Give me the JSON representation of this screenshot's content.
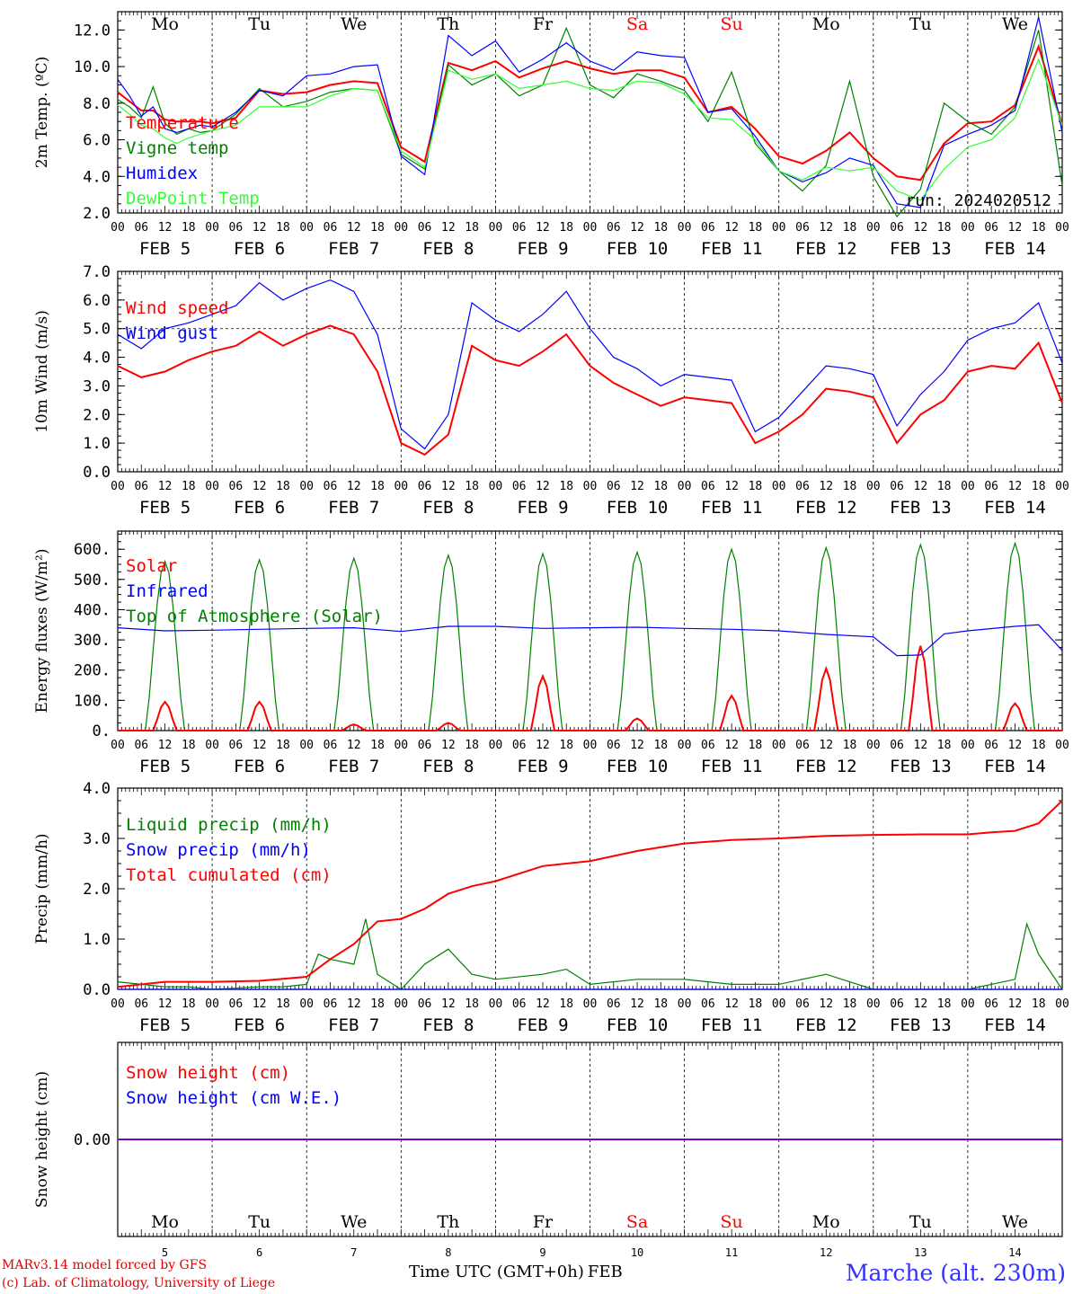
{
  "chart_data": {
    "type": "line",
    "run_label": "run: 2024020512",
    "day_names": [
      "Mo",
      "Tu",
      "We",
      "Th",
      "Fr",
      "Sa",
      "Su",
      "Mo",
      "Tu",
      "We"
    ],
    "weekend_flags": [
      false,
      false,
      false,
      false,
      false,
      true,
      true,
      false,
      false,
      false
    ],
    "date_labels": [
      "FEB  5",
      "FEB  6",
      "FEB  7",
      "FEB  8",
      "FEB  9",
      "FEB 10",
      "FEB 11",
      "FEB 12",
      "FEB 13",
      "FEB 14"
    ],
    "bottom_dates": [
      "5",
      "6",
      "7",
      "8",
      "9",
      "10",
      "11",
      "12",
      "13",
      "14"
    ],
    "hour_labels": [
      "00",
      "06",
      "12",
      "18"
    ],
    "hour_end_label": "00",
    "colors": {
      "red": "#ff0000",
      "green": "#008000",
      "blue": "#0000ff",
      "lime": "#33ff33",
      "purple": "#8000c0"
    },
    "panels": [
      {
        "id": "temp",
        "ylabel": "2m Temp. (ºC)",
        "ylim": [
          2,
          13
        ],
        "ticks": [
          2.0,
          4.0,
          6.0,
          8.0,
          10.0,
          12.0
        ],
        "tick_decimals": 1,
        "show_day_names": true,
        "series": [
          {
            "name": "Temperature",
            "color": "red",
            "x": [
              0,
              3,
              6,
              9,
              12,
              15,
              18,
              21,
              24,
              30,
              36,
              42,
              48,
              54,
              60,
              66,
              72,
              78,
              84,
              90,
              96,
              102,
              108,
              114,
              120,
              126,
              132,
              138,
              144,
              150,
              156,
              162,
              168,
              174,
              180,
              186,
              192,
              198,
              204,
              210,
              216,
              222,
              228,
              234,
              240
            ],
            "y": [
              8.6,
              8.1,
              7.6,
              7.6,
              7.1,
              7.0,
              7.0,
              7.0,
              6.9,
              7.2,
              8.7,
              8.5,
              8.6,
              9.0,
              9.2,
              9.1,
              5.6,
              4.8,
              10.2,
              9.8,
              10.3,
              9.4,
              9.9,
              10.3,
              9.9,
              9.6,
              9.8,
              9.8,
              9.4,
              7.5,
              7.8,
              6.6,
              5.1,
              4.7,
              5.4,
              6.4,
              5.0,
              4.0,
              3.8,
              5.8,
              6.9,
              7.0,
              7.9,
              11.1,
              6.8
            ]
          },
          {
            "name": "Vigne temp",
            "color": "green",
            "x": [
              0,
              3,
              6,
              9,
              12,
              15,
              18,
              21,
              24,
              30,
              36,
              42,
              48,
              54,
              60,
              66,
              72,
              78,
              84,
              90,
              96,
              102,
              108,
              114,
              120,
              126,
              132,
              138,
              144,
              150,
              156,
              162,
              168,
              174,
              180,
              186,
              192,
              198,
              204,
              210,
              216,
              222,
              228,
              234,
              240
            ],
            "y": [
              8.2,
              7.8,
              7.2,
              8.9,
              6.9,
              6.3,
              6.6,
              6.4,
              6.5,
              7.4,
              8.8,
              7.8,
              8.1,
              8.6,
              8.8,
              8.7,
              5.2,
              4.4,
              10.1,
              9.0,
              9.6,
              8.4,
              9.0,
              12.1,
              9.0,
              8.3,
              9.6,
              9.2,
              8.7,
              7.0,
              9.7,
              5.8,
              4.3,
              3.2,
              4.6,
              9.2,
              4.0,
              1.8,
              3.3,
              8.0,
              7.0,
              6.3,
              7.8,
              12.0,
              3.5
            ]
          },
          {
            "name": "Humidex",
            "color": "blue",
            "x": [
              0,
              3,
              6,
              9,
              12,
              15,
              18,
              21,
              24,
              30,
              36,
              42,
              48,
              54,
              60,
              66,
              72,
              78,
              84,
              90,
              96,
              102,
              108,
              114,
              120,
              126,
              132,
              138,
              144,
              150,
              156,
              162,
              168,
              174,
              180,
              186,
              192,
              198,
              204,
              210,
              216,
              222,
              228,
              234,
              240
            ],
            "y": [
              9.3,
              8.4,
              7.3,
              7.8,
              6.6,
              6.4,
              6.6,
              6.8,
              6.7,
              7.5,
              8.7,
              8.4,
              9.5,
              9.6,
              10.0,
              10.1,
              5.1,
              4.1,
              11.7,
              10.6,
              11.4,
              9.7,
              10.4,
              11.3,
              10.3,
              9.8,
              10.8,
              10.6,
              10.5,
              7.5,
              7.7,
              6.2,
              4.3,
              3.7,
              4.2,
              5.0,
              4.6,
              2.5,
              2.3,
              5.7,
              6.3,
              6.8,
              7.6,
              12.7,
              6.4
            ]
          },
          {
            "name": "DewPoint Temp",
            "color": "lime",
            "x": [
              0,
              3,
              6,
              9,
              12,
              15,
              18,
              21,
              24,
              30,
              36,
              42,
              48,
              54,
              60,
              66,
              72,
              78,
              84,
              90,
              96,
              102,
              108,
              114,
              120,
              126,
              132,
              138,
              144,
              150,
              156,
              162,
              168,
              174,
              180,
              186,
              192,
              198,
              204,
              210,
              216,
              222,
              228,
              234,
              240
            ],
            "y": [
              7.9,
              7.4,
              6.8,
              6.6,
              6.1,
              5.8,
              6.1,
              6.3,
              6.5,
              6.8,
              7.8,
              7.8,
              7.8,
              8.4,
              8.8,
              8.7,
              5.4,
              4.5,
              9.8,
              9.3,
              9.6,
              8.8,
              9.0,
              9.2,
              8.8,
              8.7,
              9.2,
              9.1,
              8.5,
              7.2,
              7.1,
              6.0,
              4.3,
              3.8,
              4.5,
              4.3,
              4.5,
              3.2,
              2.7,
              4.4,
              5.6,
              6.0,
              7.2,
              10.4,
              6.8
            ]
          }
        ]
      },
      {
        "id": "wind",
        "ylabel": "10m Wind (m/s)",
        "ylim": [
          0,
          7
        ],
        "ticks": [
          0.0,
          1.0,
          2.0,
          3.0,
          4.0,
          5.0,
          6.0,
          7.0
        ],
        "tick_decimals": 1,
        "dashed_ref": 5.0,
        "show_day_names": false,
        "series": [
          {
            "name": "Wind speed",
            "color": "red",
            "x": [
              0,
              6,
              12,
              18,
              24,
              30,
              36,
              42,
              48,
              54,
              60,
              66,
              72,
              78,
              84,
              90,
              96,
              102,
              108,
              114,
              120,
              126,
              132,
              138,
              144,
              150,
              156,
              162,
              168,
              174,
              180,
              186,
              192,
              198,
              204,
              210,
              216,
              222,
              228,
              234,
              240
            ],
            "y": [
              3.7,
              3.3,
              3.5,
              3.9,
              4.2,
              4.4,
              4.9,
              4.4,
              4.8,
              5.1,
              4.8,
              3.5,
              1.0,
              0.6,
              1.3,
              4.4,
              3.9,
              3.7,
              4.2,
              4.8,
              3.7,
              3.1,
              2.7,
              2.3,
              2.6,
              2.5,
              2.4,
              1.0,
              1.4,
              2.0,
              2.9,
              2.8,
              2.6,
              1.0,
              2.0,
              2.5,
              3.5,
              3.7,
              3.6,
              4.5,
              2.4
            ]
          },
          {
            "name": "Wind gust",
            "color": "blue",
            "x": [
              0,
              6,
              12,
              18,
              24,
              30,
              36,
              42,
              48,
              54,
              60,
              66,
              72,
              78,
              84,
              90,
              96,
              102,
              108,
              114,
              120,
              126,
              132,
              138,
              144,
              150,
              156,
              162,
              168,
              174,
              180,
              186,
              192,
              198,
              204,
              210,
              216,
              222,
              228,
              234,
              240
            ],
            "y": [
              4.8,
              4.3,
              5.0,
              5.2,
              5.5,
              5.8,
              6.6,
              6.0,
              6.4,
              6.7,
              6.3,
              4.8,
              1.5,
              0.8,
              2.0,
              5.9,
              5.3,
              4.9,
              5.5,
              6.3,
              5.0,
              4.0,
              3.6,
              3.0,
              3.4,
              3.3,
              3.2,
              1.4,
              1.9,
              2.8,
              3.7,
              3.6,
              3.4,
              1.6,
              2.7,
              3.5,
              4.6,
              5.0,
              5.2,
              5.9,
              3.8
            ]
          }
        ]
      },
      {
        "id": "energy",
        "ylabel": "Energy fluxes (W/m²)",
        "ylim": [
          0,
          660
        ],
        "ticks": [
          0,
          100,
          200,
          300,
          400,
          500,
          600
        ],
        "tick_decimals": 0,
        "show_day_names": false,
        "series_order": [
          "toa",
          "solar",
          "ir"
        ],
        "series": [
          {
            "key": "toa",
            "name": "Top of Atmosphere (Solar)",
            "color": "green",
            "diurnal_peaks": [
              560,
              565,
              570,
              580,
              585,
              590,
              600,
              605,
              615,
              620
            ]
          },
          {
            "key": "solar",
            "name": "Solar",
            "color": "red",
            "diurnal_peaks": [
              95,
              95,
              20,
              25,
              180,
              40,
              115,
              205,
              280,
              90
            ]
          },
          {
            "key": "ir",
            "name": "Infrared",
            "color": "blue",
            "x": [
              0,
              12,
              24,
              36,
              48,
              60,
              72,
              84,
              96,
              108,
              120,
              132,
              144,
              156,
              168,
              180,
              192,
              198,
              204,
              210,
              216,
              228,
              234,
              240
            ],
            "y": [
              340,
              330,
              332,
              335,
              338,
              340,
              328,
              345,
              345,
              338,
              340,
              342,
              338,
              335,
              330,
              318,
              310,
              248,
              250,
              320,
              330,
              345,
              350,
              265
            ]
          }
        ]
      },
      {
        "id": "precip",
        "ylabel": "Precip (mm/h)",
        "ylim": [
          0,
          4
        ],
        "ticks": [
          0.0,
          1.0,
          2.0,
          3.0,
          4.0
        ],
        "tick_decimals": 1,
        "show_day_names": false,
        "series": [
          {
            "name": "Liquid precip (mm/h)",
            "color": "green",
            "x": [
              0,
              6,
              12,
              18,
              24,
              36,
              42,
              48,
              51,
              54,
              60,
              63,
              66,
              72,
              78,
              84,
              90,
              96,
              108,
              114,
              120,
              132,
              144,
              156,
              168,
              180,
              192,
              204,
              216,
              222,
              228,
              231,
              234,
              240
            ],
            "y": [
              0.15,
              0.1,
              0.05,
              0.05,
              0.0,
              0.05,
              0.05,
              0.1,
              0.7,
              0.6,
              0.5,
              1.4,
              0.3,
              0.0,
              0.5,
              0.8,
              0.3,
              0.2,
              0.3,
              0.4,
              0.1,
              0.2,
              0.2,
              0.1,
              0.1,
              0.3,
              0.0,
              0.0,
              0.0,
              0.1,
              0.2,
              1.3,
              0.7,
              0.0
            ]
          },
          {
            "name": "Snow precip (mm/h)",
            "color": "blue",
            "x": [
              0,
              240
            ],
            "y": [
              0,
              0
            ]
          },
          {
            "name": "Total cumulated (cm)",
            "color": "red",
            "x": [
              0,
              12,
              24,
              36,
              48,
              54,
              60,
              66,
              72,
              78,
              84,
              90,
              96,
              108,
              120,
              132,
              144,
              156,
              168,
              180,
              192,
              204,
              216,
              222,
              228,
              234,
              240
            ],
            "y": [
              0.05,
              0.15,
              0.15,
              0.17,
              0.25,
              0.6,
              0.9,
              1.35,
              1.4,
              1.6,
              1.9,
              2.05,
              2.15,
              2.45,
              2.55,
              2.75,
              2.9,
              2.97,
              3.0,
              3.05,
              3.07,
              3.08,
              3.08,
              3.12,
              3.15,
              3.3,
              3.75
            ]
          }
        ]
      },
      {
        "id": "snow",
        "ylabel": "Snow height (cm)",
        "ylim": [
          -1,
          1
        ],
        "ticks": [
          0.0
        ],
        "tick_decimals": 2,
        "show_day_names": true,
        "series": [
          {
            "name": "Snow height (cm)",
            "color": "red",
            "x": [
              0,
              240
            ],
            "y": [
              0,
              0
            ]
          },
          {
            "name": "Snow height (cm W.E.)",
            "color": "blue",
            "x": [
              0,
              240
            ],
            "y": [
              0,
              0
            ]
          }
        ]
      }
    ],
    "xlabel": "Time UTC (GMT+0h)",
    "xlabel_suffix": "FEB"
  },
  "footer": {
    "model_line": "MARv3.14 model forced by GFS",
    "credit_line": "(c) Lab. of Climatology, University of Liege",
    "station": "Marche (alt. 230m)"
  }
}
